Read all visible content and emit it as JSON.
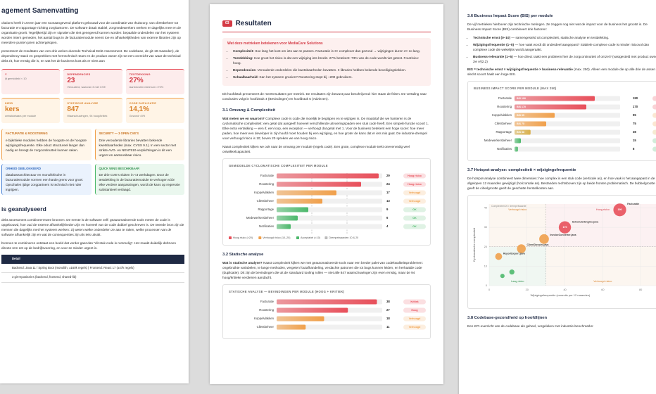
{
  "left": {
    "title": "agement Samenvatting",
    "intro": [
      "olutions heeft in zeven jaar een toonaangevend platform gebouwd voor de coördinatie van thuiszorg: van cliëntbeheer tot facturatie en rapportage richting zorgkantoren. De software draait stabiel, zorgmedewerkers werken er dagelijks mee en de organisatie groeit. Tegelijkertijd zijn er signalen die niet genegeerd kunnen worden: bepaalde onderdelen van het systeem worden intern gemeden, het aantal bugs in de facturatiemodule neemt toe en afhankelijkheden van externe libraries zijn op meerdere punten jaren achtergelopen.",
      "presenteert de resultaten van een drie weken durende Technical Debt Assessment. De codebase, de git-19 maanden), de dependency-stack en gesprekken met het technisch team en de product owner zijn tot een overzicht van waar de technical debt zit, hoe ernstig die is, en wat het de business kost als er niets aan"
    ],
    "kpis": [
      {
        "tone": "red",
        "label": "Y",
        "note": "ijt gemiddeld < 10"
      },
      {
        "tone": "red",
        "label": "DEPENDENCIES",
        "value": "23",
        "note": "Verouderd, waarvan 3 met CVE"
      },
      {
        "tone": "red",
        "label": "TESTDEKKING",
        "value": "27%",
        "note": "Aanbevolen minimum >70%"
      },
      {
        "tone": "orange",
        "label": "IHEID",
        "value": "kers",
        "note": "ontwikkelaars per module"
      },
      {
        "tone": "orange",
        "label": "STATISCHE ANALYSE",
        "value": "847",
        "note": "Waarschuwingen, 94 hoog/kritiek"
      },
      {
        "tone": "orange",
        "label": "CODE DUPLICATIE",
        "value": "14,1%",
        "note": "Gezond <5%"
      }
    ],
    "cards": [
      {
        "tone": "orange",
        "title": "FACTURATIE & ROOSTERING",
        "text": "e bijkritieke modules hebben de hoogste en de hoogste wijzigingsfrequentie. Elke oduct structureel langer dan nodig en brengt de zorgcontinuïteit kunnen raken."
      },
      {
        "tone": "orange",
        "title": "SECURITY — 3 OPEN CVE'S",
        "text": "Drie verouderde libraries bevatten bekende kwetsbaarheden (max. CVSS 9.1). In een sector met strikte AVG- en NEN7510-verplichtingen is dit een urgent en aantoonbaar risico."
      },
      {
        "tone": "blue",
        "title": "ORHEID GEBLOKKEERD",
        "text": "databasearchitectuur en monolithische in facturatiemodule vormen een harde grens voor groei. Opschalen ijdige zorgpartners is technisch niet nder ingrijpen."
      },
      {
        "tone": "green",
        "title": "QUICK WINS BESCHIKBAAR",
        "text": "De drie CVE's sluiten in <3 werkdagen. Door de testdekking in de facturatiemodule te verhogen vóór elke verdere aanpassingen, wordt de kans op regressie substantieel verlaagd."
      }
    ],
    "section_title": "is geanalyseerd",
    "section_paragraphs": [
      "debt assessment combineert twee bronnen. De eerste is de software zelf: geautomatiseerde tools meten de code is opgebouwd, hoe oud de externe afhankelijkheden zijn en hoeveel van de code dubbel geschreven is. De tweede bron zijn de mensen die dagelijks met het systeem werken: zij weten welke onderdelen ze aan te raken, welke processen van de software afhankelijk zijn en wat de consequenties zijn als iets uitvalt.",
      "bronnen te combineren ontstaat een beeld dat verder gaat dan \"dit stuk code is rommelig\". Het maakt duidelijk debt een directe rem zet op de bedrijfsvoering, en voor ze minder urgent is."
    ],
    "table": {
      "header": "Detail",
      "rows": [
        "Backend: Java 11 / Spring Boot (monolith, ±160k regels) | Frontend: React 17 (±47k regels)",
        "3 git-repositories (backend, frontend, shared-lib)"
      ]
    }
  },
  "middle": {
    "number": "03",
    "title": "Resultaten",
    "callout": {
      "title": "Wat deze metrieken betekenen voor MediaCare Solutions",
      "bullets": [
        {
          "lead": "Complexiteit:",
          "text": "Hoe lang het kost om iets aan te passen. Facturatie is 3× complexer dan gezond → wijzigingen duren 2× zo lang."
        },
        {
          "lead": "Testdekking:",
          "text": "Hoe groot het risico is dat een wijziging iets breekt. 27% betekent: 73% van de code wordt niet getest. Foutrisico: hoog."
        },
        {
          "lead": "Dependencies:",
          "text": "Verouderde onderdelen die kwetsbaarheden bevatten. 3 libraries hebben bekende beveiligingslekken."
        },
        {
          "lead": "Schaalbaarheid:",
          "text": "Kan het systeem groeien? Roostering stopt bij ~200 gebruikers."
        }
      ]
    },
    "intro": "Dit hoofdstuk presenteert de meetresultaten per metriek. De resultaten zijn bewust puur beschrijvend: hier staan de feiten. De vertaling naar conclusies volgt in hoofdstuk 4 (Bevindingen) en hoofdstuk 5 (Adviezen).",
    "s31": {
      "title": "3.1 Omvang & Complexiteit",
      "lead": "Wat meten we en waarom?",
      "text": "Complexe code is code die moeilijk te begrijpen en te wijzigen is. De maatstaf die we hanteren is de cyclomatische complexiteit: een getal dat aangeeft hoeveel verschillende uitvoeringspaden een stuk code heeft. Een simpele functie scoort 1. Elke extra vertakking — een if, een loop, een exception — verhoogt dat getal met 1. Voor de business betekent een hoge score: hoe meer paden, hoe meer een developer in zijn hoofd moet houden bij een wijziging, en hoe groter de kans dat er iets mis gaat. De industrie-drempel voor verhoogd risico is 10; boven 20 spreken we van hoog risico.",
      "text2": "Naast complexiteit kijken we ook naar de omvang per module (regels code). Een grote, complexe module trekt onevenredig veel ontwikkelcapaciteit."
    },
    "chart1": {
      "title": "GEMIDDELDE CYCLOMATISCHE COMPLEXITEIT PER MODULE",
      "categories": [
        "Facturatie",
        "Roostering",
        "Koppelvlakken",
        "Cliëntbeheer",
        "Rapportage",
        "Medewerkersbeheer",
        "Notificaties"
      ],
      "values": [
        29,
        24,
        17,
        13,
        9,
        6,
        4
      ],
      "colors": [
        "#e8505b",
        "#e8505b",
        "#f0a04b",
        "#f0a04b",
        "#4cb86b",
        "#4cb86b",
        "#4cb86b"
      ],
      "badges": [
        "Hoog risico",
        "Hoog risico",
        "Verhoogd",
        "Verhoogd",
        "OK",
        "OK",
        "OK"
      ],
      "xlim": [
        0,
        30
      ],
      "thresholds": [
        10,
        20
      ],
      "legend": [
        {
          "label": "Hoog risico (>20)",
          "color": "#e8505b"
        },
        {
          "label": "Verhoogd risico (10–20)",
          "color": "#f0a04b"
        },
        {
          "label": "Acceptabel (<10)",
          "color": "#4cb86b"
        },
        {
          "label": "Drempelwaarden 10 & 20",
          "color": "#bbbbbb"
        }
      ]
    },
    "s32": {
      "title": "3.2 Statische analyse",
      "lead": "Wat is statische analyse?",
      "text": "Naast complexiteit kijken we met geautomatiseerde tools naar een breder palet van codekwaliteitsproblemen: ongebruikte variabelen, te lange methoden, vergeten foutafhandeling, verdachte patronen die tot bugs kunnen leiden, en herhaalde code (duplicatie). Dit zijn de bevindingen die uit de standaard tooling rollen — niet alle 847 waarschuwingen zijn even ernstig, maar de 94 hoog/kritieke verdienen aandacht."
    },
    "chart2": {
      "title": "STATISCHE ANALYSE — BEVINDINGEN PER MODULE (HOOG + KRITIEK)",
      "categories": [
        "Facturatie",
        "Roostering",
        "Koppelvlakken",
        "Cliëntbeheer"
      ],
      "values": [
        38,
        27,
        18,
        11
      ],
      "colors": [
        "#e8505b",
        "#e8505b",
        "#f0a04b",
        "#f0a04b"
      ],
      "badges": [
        "Kritiek",
        "Hoog",
        "Verhoogd",
        "Verhoogd"
      ],
      "xlim": [
        0,
        40
      ]
    }
  },
  "right": {
    "s36": {
      "title": "3.6 Business Impact Score (BIS) per module",
      "text": "De vijf metrieken hierboven zijn technische metingen. Ze zeggen nog niet wat de impact voor de business het grootst is. De Business Impact Score (BIS) combineert drie factoren:",
      "bullets": [
        {
          "lead": "Technische ernst (0–10)",
          "text": "— samengesteld uit complexiteit, statische analyse en testdekking."
        },
        {
          "lead": "Wijzigingsfrequentie (1–5)",
          "text": "— hoe vaak wordt dit onderdeel aangepast? Stabiele complexe code is minder risicovol dan complexe code die wekelijks wordt aangeraakt."
        },
        {
          "lead": "Business-relevantie (1–5)",
          "text": "— hoe direct raakt een probleem hier de zorgcontinuïteit of omzet? (vastgesteld met product owner, zie A§2.2)"
        }
      ],
      "formula_lead": "BIS = technische ernst × wijzigingsfrequentie × business-relevantie",
      "formula_text": "(max. 250). Alleen een module die op alle drie de assen slecht scoort haalt een hoge BIS."
    },
    "chart3": {
      "title": "BUSINESS IMPACT SCORE PER MODULE (MAX 250)",
      "categories": [
        "Facturatie",
        "Roostering",
        "Koppelvlakken",
        "Cliëntbeheer",
        "Rapportage",
        "Medewerkersbeheer",
        "Notificaties"
      ],
      "values": [
        190,
        170,
        95,
        75,
        38,
        15,
        8
      ],
      "bar_labels": [
        "BIS 190",
        "BIS 170",
        "BIS 95",
        "BIS 75",
        "BIS 38",
        null,
        null
      ],
      "colors": [
        "#e8505b",
        "#e8505b",
        "#f0a04b",
        "#f0a04b",
        "#d9b04b",
        "#4cb86b",
        "#4cb86b"
      ],
      "xlim": [
        0,
        250
      ]
    },
    "s37": {
      "title": "3.7 Hotspot-analyse: complexiteit × wijzigingsfrequentie",
      "text": "De hotspot-analyse combineert twee dimensies: hoe complex is een stuk code (verticale as), en hoe vaak is het aangepast in de afgelopen 12 maanden gewijzigd (horizontale as). Bestanden rechtsboven zijn op beide fronten problematisch. De bubbelgrootte geeft de cirkelgrootte geeft de geschatte herstelkosten aan."
    },
    "scatter": {
      "type": "scatter",
      "xlabel": "Wijzigingsfrequentie (commits per 12 maanden)",
      "ylabel": "Cyclomatische complexiteit",
      "annotation": "Complexiteit 20 / drempelwaarde",
      "x": [
        69,
        40,
        29,
        17,
        5,
        12,
        7
      ],
      "y": [
        39,
        30,
        24,
        19,
        15,
        7,
        5
      ],
      "sizes": [
        190,
        170,
        95,
        75,
        38,
        15,
        8
      ],
      "point_labels": [
        "Facturatie",
        "SchedulerEngine.java",
        "InvoiceConverter.java",
        "ClientDossier.java",
        "ReportExport.java",
        null,
        null
      ],
      "size_labels": [
        "190",
        "170",
        null,
        null,
        null,
        null,
        null
      ],
      "colors": [
        "#e8505b",
        "#e8505b",
        "#f0a04b",
        "#f0a04b",
        "#f0a04b",
        "#4cb86b",
        "#4cb86b"
      ],
      "xlim": [
        0,
        90
      ],
      "ylim": [
        0,
        42
      ],
      "xticks": [
        0,
        20,
        40,
        60,
        80
      ],
      "yticks": [
        0,
        10,
        20,
        30,
        40
      ],
      "xthreshold": 30,
      "ythreshold": 20,
      "quadrants": [
        {
          "corner": "top-left",
          "label": "Verhoogd risico",
          "color": "#d9822b"
        },
        {
          "corner": "top-right",
          "label": "Hoog risico",
          "color": "#d43a45"
        },
        {
          "corner": "bottom-left",
          "label": "Laag risico",
          "color": "#2f8f4c"
        },
        {
          "corner": "bottom-right",
          "label": "Verhoogd risico",
          "color": "#d9822b"
        }
      ]
    },
    "s38": {
      "title": "3.8 Codebase-gezondheid op hoofdlijnen",
      "text": "Een KPI-overzicht van de codebase als geheel, vergeleken met industrie-benchmarks:"
    }
  }
}
